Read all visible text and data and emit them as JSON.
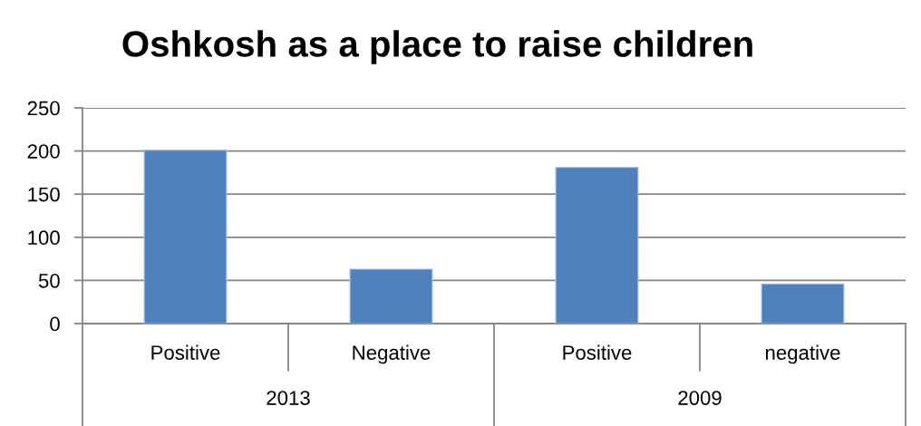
{
  "chart_data": {
    "type": "bar",
    "title": "Oshkosh as a place to raise children",
    "categories": [
      "Positive",
      "Negative",
      "Positive",
      "negative"
    ],
    "values": [
      201,
      63,
      181,
      46
    ],
    "color": "#4f81bd",
    "ylim": [
      0,
      250
    ],
    "yticks": [
      0,
      50,
      100,
      150,
      200,
      250
    ],
    "grid": "y",
    "annotations": [
      "2013",
      "2009"
    ]
  }
}
